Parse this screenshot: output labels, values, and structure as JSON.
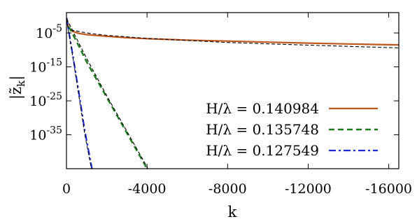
{
  "chart_data": {
    "type": "line",
    "title": "",
    "xlabel": "k",
    "ylabel": "|z̃k|",
    "ylabel_parts": {
      "base": "|z̃",
      "sub": "k",
      "close": "|"
    },
    "xlim": [
      0,
      -16500
    ],
    "ylim_log10": [
      -45,
      1
    ],
    "y_scale": "log",
    "x_ticks": [
      0,
      -4000,
      -8000,
      -12000,
      -16000
    ],
    "x_tick_labels": [
      "0",
      "-4000",
      "-8000",
      "-12000",
      "-16000"
    ],
    "y_ticks_log10": [
      -5,
      -15,
      -25,
      -35
    ],
    "y_tick_labels": [
      {
        "base": "10",
        "exp": "-5"
      },
      {
        "base": "10",
        "exp": "-15"
      },
      {
        "base": "10",
        "exp": "-25"
      },
      {
        "base": "10",
        "exp": "-35"
      }
    ],
    "grid": false,
    "legend_position": "bottom-right",
    "series": [
      {
        "name": "H/λ = 0.140984",
        "color": "#c0571d",
        "style": "solid",
        "x": [
          0,
          -100,
          -300,
          -600,
          -1000,
          -2000,
          -3000,
          -4000,
          -6000,
          -8000,
          -10000,
          -12000,
          -14000,
          -16500
        ],
        "log10_y": [
          -0.5,
          -3.5,
          -4.5,
          -5.1,
          -5.5,
          -6.0,
          -6.4,
          -6.7,
          -7.1,
          -7.4,
          -7.7,
          -8.0,
          -8.25,
          -8.5
        ]
      },
      {
        "name": "H/λ = 0.135748",
        "color": "#1a7a1a",
        "style": "dashed",
        "x": [
          0,
          -100,
          -500,
          -1000,
          -2000,
          -3000,
          -4000,
          -4200
        ],
        "log10_y": [
          -0.5,
          -3.0,
          -7.5,
          -13.5,
          -24.0,
          -34.5,
          -45.0,
          -47.0
        ]
      },
      {
        "name": "H/λ = 0.127549",
        "color": "#1a2ad6",
        "style": "dash-dot",
        "x": [
          0,
          -300,
          -600,
          -900,
          -1300
        ],
        "log10_y": [
          -0.5,
          -11.0,
          -22.0,
          -33.5,
          -46.0
        ]
      },
      {
        "name": "",
        "color": "#000000",
        "style": "thin-dashed",
        "x": [
          0,
          -300,
          -1000,
          -2000,
          -4000,
          -6000,
          -8000,
          -12000,
          -16500
        ],
        "log10_y": [
          -0.8,
          -4.2,
          -5.0,
          -5.7,
          -6.6,
          -7.2,
          -7.8,
          -8.6,
          -9.4
        ]
      },
      {
        "name": "",
        "color": "#000000",
        "style": "thin-dashed",
        "x": [
          0,
          -1000,
          -2000,
          -3000,
          -4000,
          -4200
        ],
        "log10_y": [
          -0.8,
          -12.5,
          -23.5,
          -34.0,
          -44.5,
          -47.0
        ]
      },
      {
        "name": "",
        "color": "#000000",
        "style": "thin-dashed",
        "x": [
          0,
          -300,
          -600,
          -900,
          -1300
        ],
        "log10_y": [
          -0.8,
          -11.5,
          -23.0,
          -34.5,
          -47.0
        ]
      }
    ]
  }
}
